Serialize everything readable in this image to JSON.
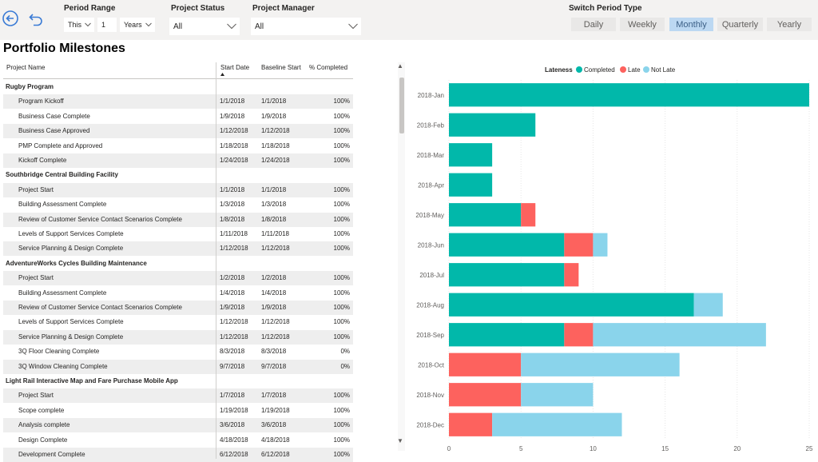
{
  "toolbar": {
    "period_range": {
      "label": "Period Range",
      "mode": "This",
      "count": "1",
      "unit": "Years"
    },
    "project_status": {
      "label": "Project Status",
      "value": "All"
    },
    "project_manager": {
      "label": "Project Manager",
      "value": "All"
    },
    "switch_period": {
      "label": "Switch Period Type",
      "options": [
        "Daily",
        "Weekly",
        "Monthly",
        "Quarterly",
        "Yearly"
      ],
      "selected": "Monthly"
    }
  },
  "page_title": "Portfolio Milestones",
  "table": {
    "headers": [
      "Project Name",
      "Start Date",
      "Baseline Start",
      "% Completed"
    ],
    "rows": [
      {
        "type": "group",
        "name": "Rugby Program"
      },
      {
        "type": "data",
        "name": "Program Kickoff",
        "start": "1/1/2018",
        "baseline": "1/1/2018",
        "pct": "100%"
      },
      {
        "type": "data",
        "name": "Business Case Complete",
        "start": "1/9/2018",
        "baseline": "1/9/2018",
        "pct": "100%"
      },
      {
        "type": "data",
        "name": "Business Case Approved",
        "start": "1/12/2018",
        "baseline": "1/12/2018",
        "pct": "100%"
      },
      {
        "type": "data",
        "name": "PMP Complete and Approved",
        "start": "1/18/2018",
        "baseline": "1/18/2018",
        "pct": "100%"
      },
      {
        "type": "data",
        "name": "Kickoff Complete",
        "start": "1/24/2018",
        "baseline": "1/24/2018",
        "pct": "100%"
      },
      {
        "type": "group",
        "name": "Southbridge Central Building Facility"
      },
      {
        "type": "data",
        "name": "Project Start",
        "start": "1/1/2018",
        "baseline": "1/1/2018",
        "pct": "100%"
      },
      {
        "type": "data",
        "name": "Building Assessment Complete",
        "start": "1/3/2018",
        "baseline": "1/3/2018",
        "pct": "100%"
      },
      {
        "type": "data",
        "name": "Review of Customer Service Contact Scenarios Complete",
        "start": "1/8/2018",
        "baseline": "1/8/2018",
        "pct": "100%"
      },
      {
        "type": "data",
        "name": "Levels of Support Services Complete",
        "start": "1/11/2018",
        "baseline": "1/11/2018",
        "pct": "100%"
      },
      {
        "type": "data",
        "name": "Service Planning & Design Complete",
        "start": "1/12/2018",
        "baseline": "1/12/2018",
        "pct": "100%"
      },
      {
        "type": "group",
        "name": "AdventureWorks Cycles Building Maintenance"
      },
      {
        "type": "data",
        "name": "Project Start",
        "start": "1/2/2018",
        "baseline": "1/2/2018",
        "pct": "100%"
      },
      {
        "type": "data",
        "name": "Building Assessment Complete",
        "start": "1/4/2018",
        "baseline": "1/4/2018",
        "pct": "100%"
      },
      {
        "type": "data",
        "name": "Review of Customer Service Contact Scenarios Complete",
        "start": "1/9/2018",
        "baseline": "1/9/2018",
        "pct": "100%"
      },
      {
        "type": "data",
        "name": "Levels of Support Services Complete",
        "start": "1/12/2018",
        "baseline": "1/12/2018",
        "pct": "100%"
      },
      {
        "type": "data",
        "name": "Service Planning & Design Complete",
        "start": "1/12/2018",
        "baseline": "1/12/2018",
        "pct": "100%"
      },
      {
        "type": "data",
        "name": "3Q Floor Cleaning Complete",
        "start": "8/3/2018",
        "baseline": "8/3/2018",
        "pct": "0%"
      },
      {
        "type": "data",
        "name": "3Q Window Cleaning Complete",
        "start": "9/7/2018",
        "baseline": "9/7/2018",
        "pct": "0%"
      },
      {
        "type": "group",
        "name": "Light Rail Interactive Map and Fare Purchase Mobile App"
      },
      {
        "type": "data",
        "name": "Project Start",
        "start": "1/7/2018",
        "baseline": "1/7/2018",
        "pct": "100%"
      },
      {
        "type": "data",
        "name": "Scope complete",
        "start": "1/19/2018",
        "baseline": "1/19/2018",
        "pct": "100%"
      },
      {
        "type": "data",
        "name": "Analysis complete",
        "start": "3/6/2018",
        "baseline": "3/6/2018",
        "pct": "100%"
      },
      {
        "type": "data",
        "name": "Design Complete",
        "start": "4/18/2018",
        "baseline": "4/18/2018",
        "pct": "100%"
      },
      {
        "type": "data",
        "name": "Development Complete",
        "start": "6/12/2018",
        "baseline": "6/12/2018",
        "pct": "100%"
      }
    ]
  },
  "chart_data": {
    "type": "bar",
    "orientation": "horizontal",
    "stacked": true,
    "legend_title": "Lateness",
    "legend_position": "top",
    "categories": [
      "2018-Jan",
      "2018-Feb",
      "2018-Mar",
      "2018-Apr",
      "2018-May",
      "2018-Jun",
      "2018-Jul",
      "2018-Aug",
      "2018-Sep",
      "2018-Oct",
      "2018-Nov",
      "2018-Dec"
    ],
    "series": [
      {
        "name": "Completed",
        "color": "#01b8aa",
        "values": [
          25,
          6,
          3,
          3,
          5,
          8,
          8,
          17,
          8,
          0,
          0,
          0
        ]
      },
      {
        "name": "Late",
        "color": "#fd625e",
        "values": [
          0,
          0,
          0,
          0,
          1,
          2,
          1,
          0,
          2,
          5,
          5,
          3
        ]
      },
      {
        "name": "Not Late",
        "color": "#8ad4eb",
        "values": [
          0,
          0,
          0,
          0,
          0,
          1,
          0,
          2,
          12,
          11,
          5,
          9
        ]
      }
    ],
    "xlim": [
      0,
      25
    ],
    "xticks": [
      0,
      5,
      10,
      15,
      20,
      25
    ],
    "grid": true
  }
}
